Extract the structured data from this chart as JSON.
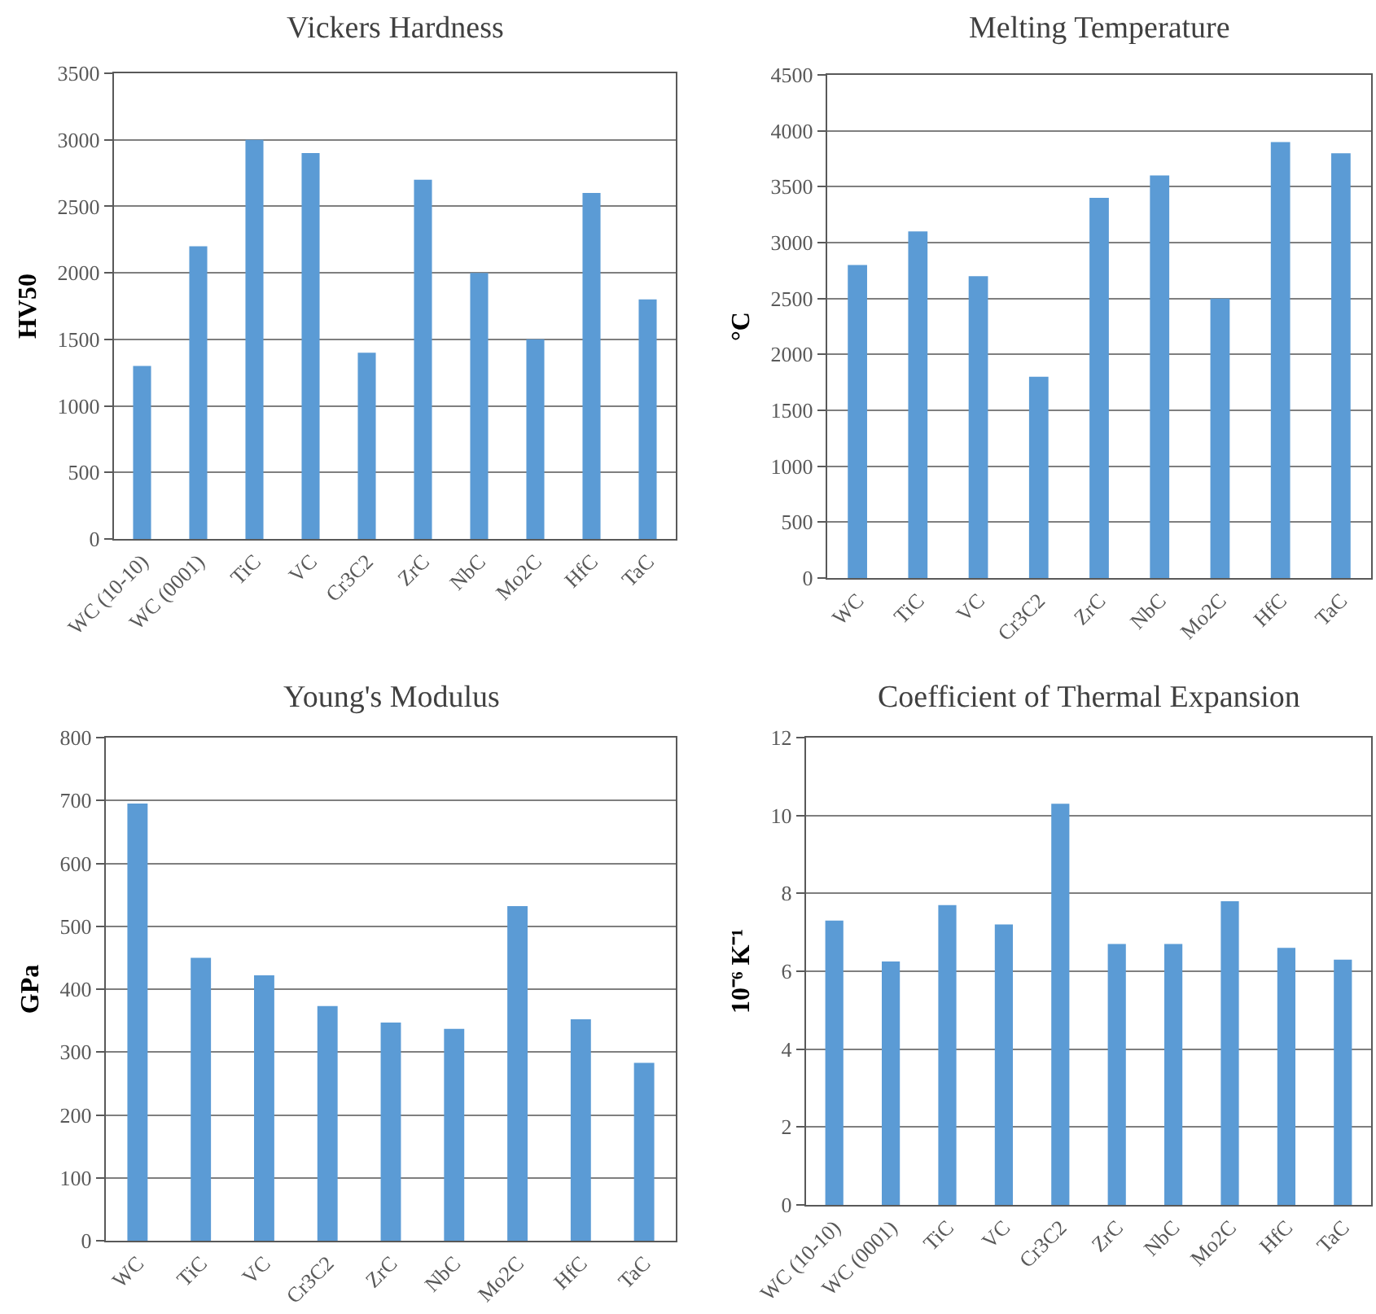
{
  "chart_data": [
    {
      "type": "bar",
      "title": "Vickers Hardness",
      "ylabel": "HV50",
      "categories": [
        "WC (10-10)",
        "WC (0001)",
        "TiC",
        "VC",
        "Cr3C2",
        "ZrC",
        "NbC",
        "Mo2C",
        "HfC",
        "TaC"
      ],
      "values": [
        1300,
        2200,
        3000,
        2900,
        1400,
        2700,
        2000,
        1500,
        2600,
        1800
      ],
      "color": "#5b9bd5",
      "ylim": [
        0,
        3500
      ],
      "yticks": [
        0,
        500,
        1000,
        1500,
        2000,
        2500,
        3000,
        3500
      ],
      "grid": "y"
    },
    {
      "type": "bar",
      "title": "Melting Temperature",
      "ylabel": "°C",
      "categories": [
        "WC",
        "TiC",
        "VC",
        "Cr3C2",
        "ZrC",
        "NbC",
        "Mo2C",
        "HfC",
        "TaC"
      ],
      "values": [
        2800,
        3100,
        2700,
        1800,
        3400,
        3600,
        2500,
        3900,
        3800
      ],
      "color": "#5b9bd5",
      "ylim": [
        0,
        4500
      ],
      "yticks": [
        0,
        500,
        1000,
        1500,
        2000,
        2500,
        3000,
        3500,
        4000,
        4500
      ],
      "grid": "y"
    },
    {
      "type": "bar",
      "title": "Young's Modulus",
      "ylabel": "GPa",
      "categories": [
        "WC",
        "TiC",
        "VC",
        "Cr3C2",
        "ZrC",
        "NbC",
        "Mo2C",
        "HfC",
        "TaC"
      ],
      "values": [
        695,
        450,
        422,
        373,
        347,
        337,
        532,
        352,
        283
      ],
      "color": "#5b9bd5",
      "ylim": [
        0,
        800
      ],
      "yticks": [
        0,
        100,
        200,
        300,
        400,
        500,
        600,
        700,
        800
      ],
      "grid": "y"
    },
    {
      "type": "bar",
      "title": "Coefficient of Thermal Expansion",
      "ylabel": "10⁻⁶ K⁻¹",
      "categories": [
        "WC (10-10)",
        "WC (0001)",
        "TiC",
        "VC",
        "Cr3C2",
        "ZrC",
        "NbC",
        "Mo2C",
        "HfC",
        "TaC"
      ],
      "values": [
        7.3,
        6.25,
        7.7,
        7.2,
        10.3,
        6.7,
        6.7,
        7.8,
        6.6,
        6.3
      ],
      "color": "#5b9bd5",
      "ylim": [
        0,
        12
      ],
      "yticks": [
        0,
        2,
        4,
        6,
        8,
        10,
        12
      ],
      "grid": "y"
    }
  ]
}
